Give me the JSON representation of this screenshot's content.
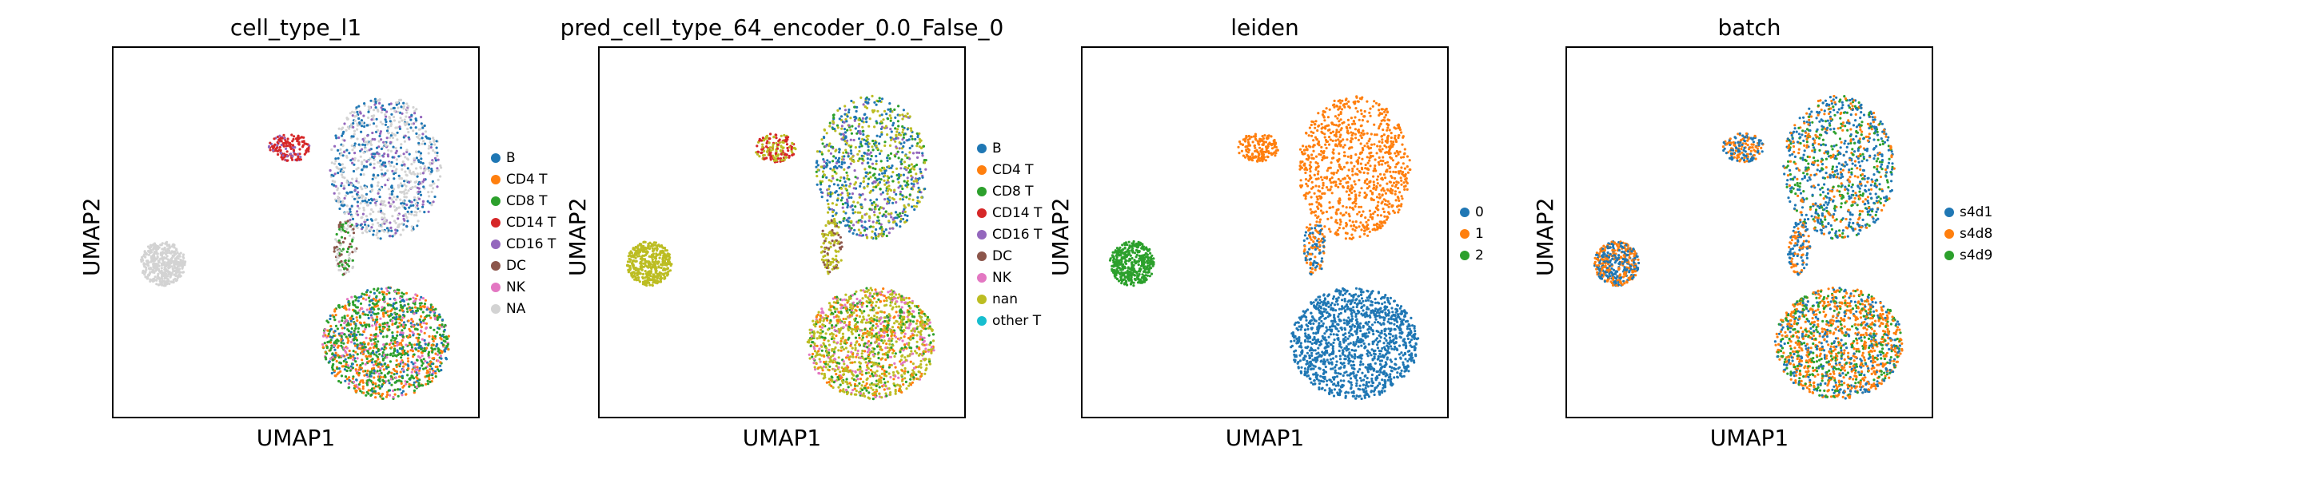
{
  "figure": {
    "xlabel": "UMAP1",
    "ylabel": "UMAP2"
  },
  "chart_data": [
    {
      "type": "scatter",
      "title": "cell_type_l1",
      "xlabel": "UMAP1",
      "ylabel": "UMAP2",
      "legend_placement": "right",
      "categories": [
        {
          "name": "B",
          "color": "#1f77b4"
        },
        {
          "name": "CD4 T",
          "color": "#ff7f0e"
        },
        {
          "name": "CD8 T",
          "color": "#2ca02c"
        },
        {
          "name": "CD14 T",
          "color": "#d62728"
        },
        {
          "name": "CD16 T",
          "color": "#9467bd"
        },
        {
          "name": "DC",
          "color": "#8c564b"
        },
        {
          "name": "NK",
          "color": "#e377c2"
        },
        {
          "name": "NA",
          "color": "#d3d3d3"
        }
      ]
    },
    {
      "type": "scatter",
      "title": "pred_cell_type_64_encoder_0.0_False_0",
      "xlabel": "UMAP1",
      "ylabel": "UMAP2",
      "legend_placement": "right",
      "categories": [
        {
          "name": "B",
          "color": "#1f77b4"
        },
        {
          "name": "CD4 T",
          "color": "#ff7f0e"
        },
        {
          "name": "CD8 T",
          "color": "#2ca02c"
        },
        {
          "name": "CD14 T",
          "color": "#d62728"
        },
        {
          "name": "CD16 T",
          "color": "#9467bd"
        },
        {
          "name": "DC",
          "color": "#8c564b"
        },
        {
          "name": "NK",
          "color": "#e377c2"
        },
        {
          "name": "nan",
          "color": "#bcbd22"
        },
        {
          "name": "other T",
          "color": "#17becf"
        }
      ]
    },
    {
      "type": "scatter",
      "title": "leiden",
      "xlabel": "UMAP1",
      "ylabel": "UMAP2",
      "legend_placement": "right",
      "categories": [
        {
          "name": "0",
          "color": "#1f77b4"
        },
        {
          "name": "1",
          "color": "#ff7f0e"
        },
        {
          "name": "2",
          "color": "#2ca02c"
        }
      ]
    },
    {
      "type": "scatter",
      "title": "batch",
      "xlabel": "UMAP1",
      "ylabel": "UMAP2",
      "legend_placement": "right",
      "categories": [
        {
          "name": "s4d1",
          "color": "#1f77b4"
        },
        {
          "name": "s4d8",
          "color": "#ff7f0e"
        },
        {
          "name": "s4d9",
          "color": "#2ca02c"
        }
      ]
    }
  ]
}
